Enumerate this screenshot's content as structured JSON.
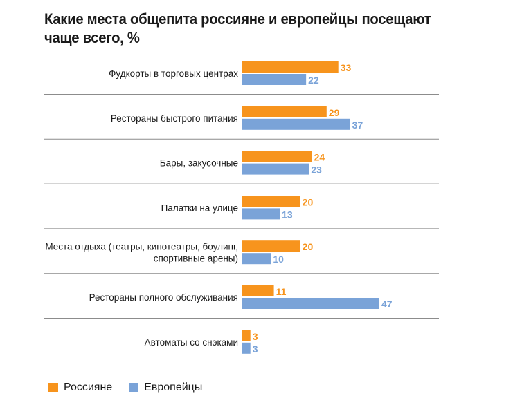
{
  "chart_data": {
    "type": "bar",
    "orientation": "horizontal",
    "title": "Какие места общепита россияне и европейцы посещают чаще всего, %",
    "categories": [
      [
        "Фудкорты в торговых центрах"
      ],
      [
        "Рестораны быстрого питания"
      ],
      [
        "Бары, закусочные"
      ],
      [
        "Палатки на улице"
      ],
      [
        "Места отдыха (театры, кинотеатры, боулинг,",
        "спортивные арены)"
      ],
      [
        "Рестораны полного обслуживания"
      ],
      [
        "Автоматы со снэками"
      ]
    ],
    "series": [
      {
        "name": "Россияне",
        "color": "#f7941d",
        "values": [
          33,
          29,
          24,
          20,
          20,
          11,
          3
        ]
      },
      {
        "name": "Европейцы",
        "color": "#7aa3d8",
        "values": [
          22,
          37,
          23,
          13,
          10,
          47,
          3
        ]
      }
    ],
    "xlim": [
      0,
      47
    ],
    "grid": false,
    "legend_position": "bottom-left"
  }
}
